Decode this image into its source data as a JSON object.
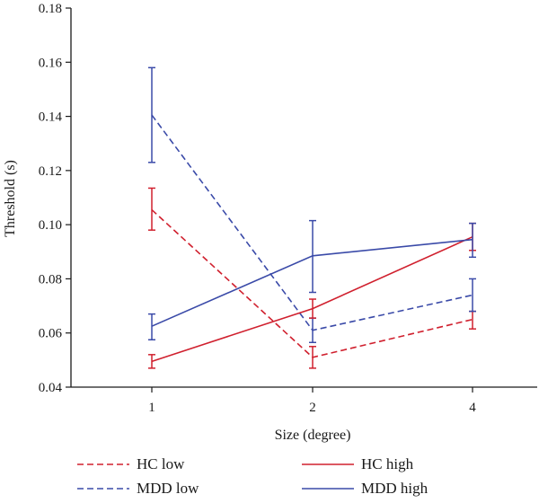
{
  "chart_data": {
    "type": "line",
    "xlabel": "Size (degree)",
    "ylabel": "Threshold (s)",
    "categories": [
      "1",
      "2",
      "4"
    ],
    "ylim": [
      0.04,
      0.18
    ],
    "yticks": [
      "0.04",
      "0.06",
      "0.08",
      "0.10",
      "0.12",
      "0.14",
      "0.16",
      "0.18"
    ],
    "grid": false,
    "legend_position": "bottom",
    "series": [
      {
        "name": "HC low",
        "color": "#d0202e",
        "dashed": true,
        "values": [
          0.1055,
          0.051,
          0.065
        ],
        "err_low": [
          0.098,
          0.047,
          0.0615
        ],
        "err_high": [
          0.1135,
          0.055,
          0.068
        ]
      },
      {
        "name": "MDD low",
        "color": "#3a4aa8",
        "dashed": true,
        "values": [
          0.1405,
          0.061,
          0.074
        ],
        "err_low": [
          0.123,
          0.0565,
          0.068
        ],
        "err_high": [
          0.158,
          0.0655,
          0.08
        ]
      },
      {
        "name": "HC high",
        "color": "#d0202e",
        "dashed": false,
        "values": [
          0.0495,
          0.069,
          0.0955
        ],
        "err_low": [
          0.047,
          0.0655,
          0.0905
        ],
        "err_high": [
          0.052,
          0.0725,
          0.1005
        ]
      },
      {
        "name": "MDD high",
        "color": "#3a4aa8",
        "dashed": false,
        "values": [
          0.0625,
          0.0885,
          0.0945
        ],
        "err_low": [
          0.0575,
          0.075,
          0.088
        ],
        "err_high": [
          0.067,
          0.1015,
          0.1005
        ]
      }
    ]
  }
}
